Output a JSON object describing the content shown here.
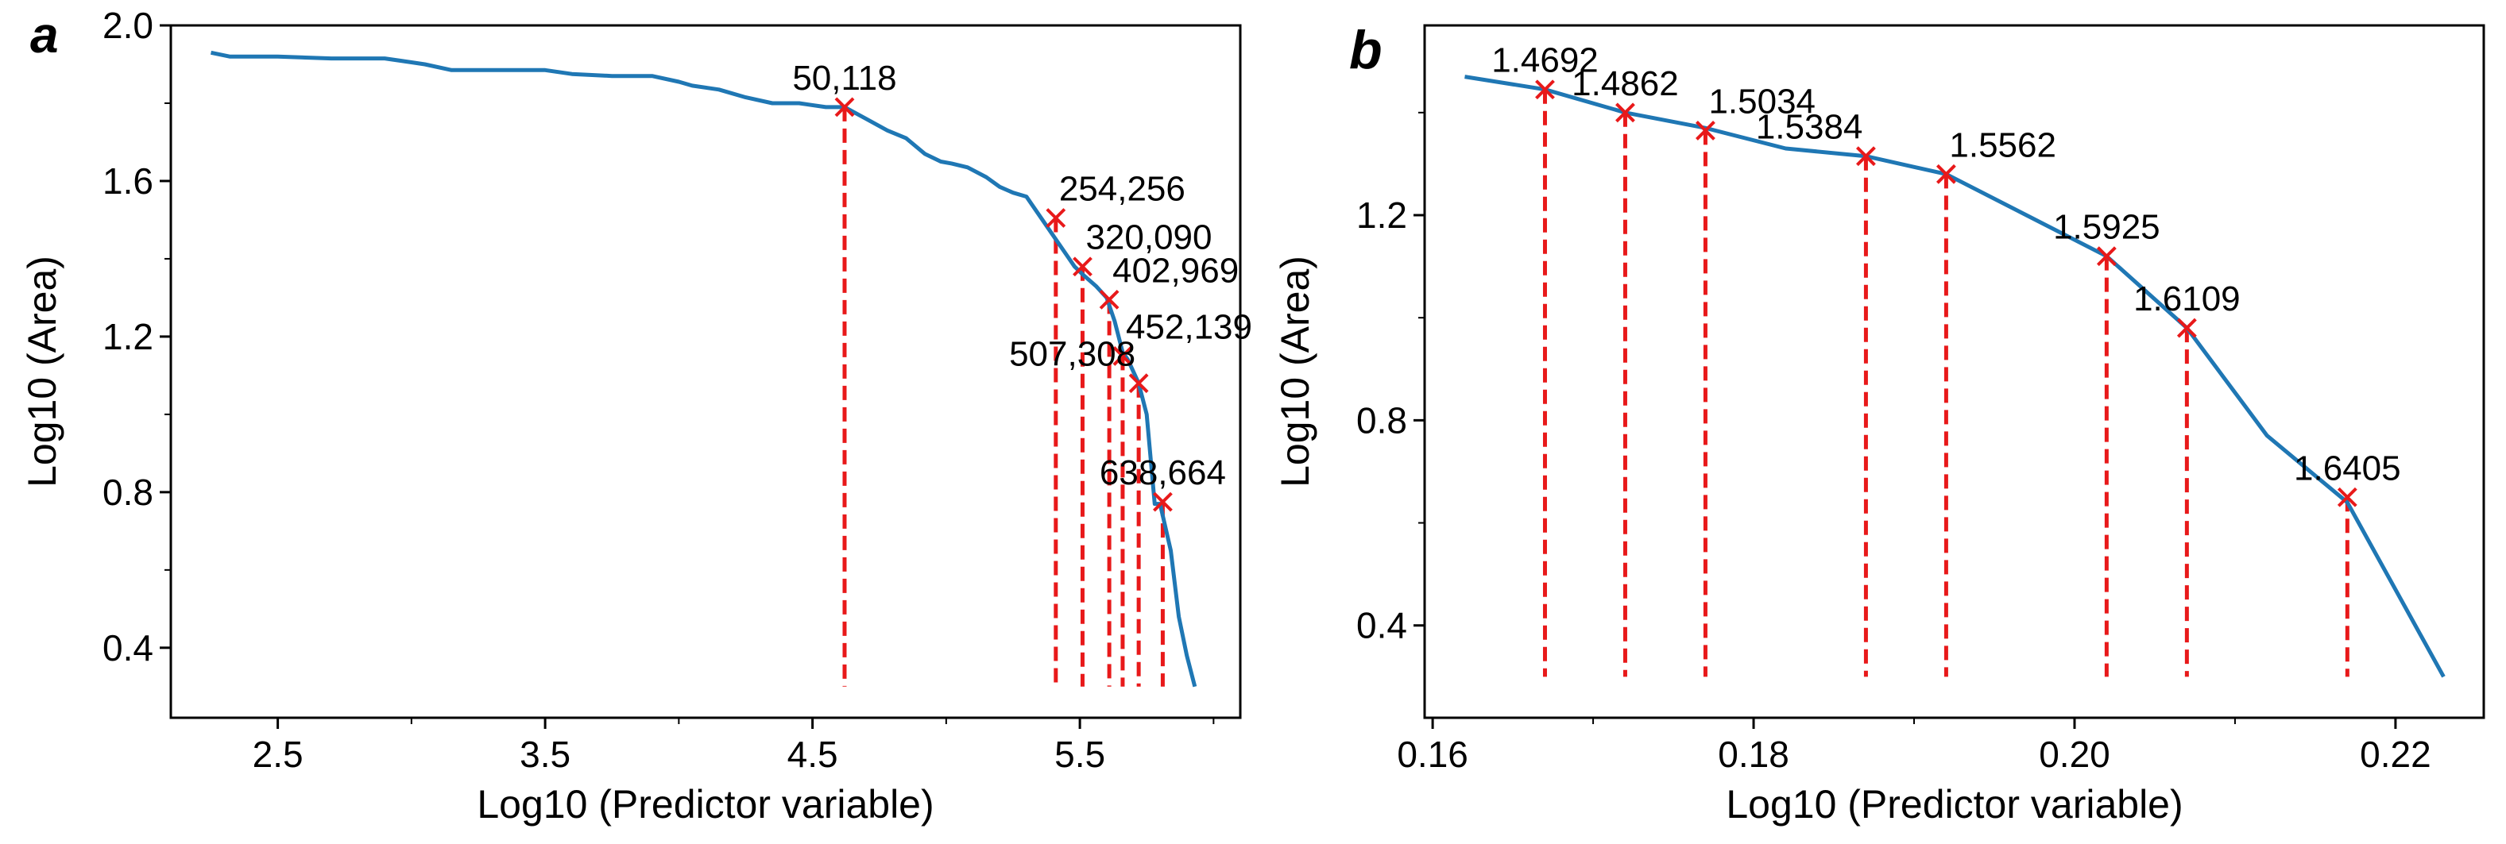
{
  "chart_data": [
    {
      "panel_label": "a",
      "type": "line",
      "xlabel": "Log10 (Predictor variable)",
      "ylabel": "Log10 (Area)",
      "xlim": [
        2.1,
        6.1
      ],
      "ylim": [
        0.22,
        2.0
      ],
      "xticks": [
        2.5,
        3.5,
        4.5,
        5.5
      ],
      "xtick_labels": [
        "2.5",
        "3.5",
        "4.5",
        "5.5"
      ],
      "xminor": [
        2.0,
        3.0,
        4.0,
        5.0,
        6.0
      ],
      "yticks": [
        0.4,
        0.8,
        1.2,
        1.6,
        2.0
      ],
      "ytick_labels": [
        "0.4",
        "0.8",
        "1.2",
        "1.6",
        "2.0"
      ],
      "yminor": [
        0.6,
        1.0,
        1.4,
        1.8
      ],
      "line_color": "#1f77b4",
      "marker_color": "#e8191a",
      "series": [
        {
          "name": "curve",
          "x": [
            2.25,
            2.32,
            2.5,
            2.7,
            2.9,
            3.0,
            3.05,
            3.15,
            3.3,
            3.5,
            3.6,
            3.75,
            3.9,
            4.0,
            4.05,
            4.15,
            4.25,
            4.35,
            4.45,
            4.55,
            4.62,
            4.7,
            4.78,
            4.85,
            4.92,
            4.98,
            5.02,
            5.08,
            5.15,
            5.2,
            5.25,
            5.3,
            5.36,
            5.41,
            5.45,
            5.48,
            5.51,
            5.56,
            5.6,
            5.63,
            5.66,
            5.68,
            5.72,
            5.75,
            5.78,
            5.8,
            5.84,
            5.87,
            5.9,
            5.93
          ],
          "y": [
            1.93,
            1.92,
            1.92,
            1.915,
            1.915,
            1.905,
            1.9,
            1.885,
            1.885,
            1.885,
            1.875,
            1.87,
            1.87,
            1.855,
            1.845,
            1.835,
            1.815,
            1.8,
            1.8,
            1.79,
            1.79,
            1.76,
            1.73,
            1.71,
            1.67,
            1.65,
            1.645,
            1.635,
            1.61,
            1.585,
            1.57,
            1.56,
            1.5,
            1.45,
            1.41,
            1.38,
            1.36,
            1.33,
            1.3,
            1.24,
            1.16,
            1.14,
            1.08,
            1.0,
            0.77,
            0.77,
            0.65,
            0.48,
            0.38,
            0.3
          ]
        }
      ],
      "markers": [
        {
          "x": 4.62,
          "y": 1.79,
          "label": "50,118",
          "anchor": "middle"
        },
        {
          "x": 5.41,
          "y": 1.505,
          "label": "254,256",
          "anchor": "start"
        },
        {
          "x": 5.51,
          "y": 1.38,
          "label": "320,090",
          "anchor": "start"
        },
        {
          "x": 5.61,
          "y": 1.295,
          "label": "402,969",
          "anchor": "start"
        },
        {
          "x": 5.66,
          "y": 1.15,
          "label": "452,139",
          "anchor": "start"
        },
        {
          "x": 5.72,
          "y": 1.08,
          "label": "507,308",
          "anchor": "end"
        },
        {
          "x": 5.81,
          "y": 0.775,
          "label": "638,664",
          "anchor": "middle"
        }
      ],
      "drop_line_bottom": 0.3
    },
    {
      "panel_label": "b",
      "type": "line",
      "xlabel": "Log10 (Predictor variable)",
      "ylabel": "Log10 (Area)",
      "xlim": [
        0.1595,
        0.2255
      ],
      "ylim": [
        0.22,
        1.57
      ],
      "xticks": [
        0.16,
        0.18,
        0.2,
        0.22
      ],
      "xtick_labels": [
        "0.16",
        "0.18",
        "0.20",
        "0.22"
      ],
      "xminor": [
        0.17,
        0.19,
        0.21
      ],
      "yticks": [
        0.4,
        0.8,
        1.2
      ],
      "ytick_labels": [
        "0.4",
        "0.8",
        "1.2"
      ],
      "yminor": [
        0.6,
        1.0,
        1.4
      ],
      "line_color": "#1f77b4",
      "marker_color": "#e8191a",
      "series": [
        {
          "name": "curve",
          "x": [
            0.162,
            0.167,
            0.172,
            0.177,
            0.182,
            0.187,
            0.192,
            0.197,
            0.202,
            0.207,
            0.212,
            0.217,
            0.223
          ],
          "y": [
            1.47,
            1.445,
            1.4,
            1.37,
            1.33,
            1.315,
            1.28,
            1.2,
            1.12,
            0.98,
            0.77,
            0.64,
            0.3
          ]
        }
      ],
      "markers": [
        {
          "x": 0.167,
          "y": 1.445,
          "label": "1.4692",
          "anchor": "middle"
        },
        {
          "x": 0.172,
          "y": 1.4,
          "label": "1.4862",
          "anchor": "middle"
        },
        {
          "x": 0.177,
          "y": 1.365,
          "label": "1.5034",
          "anchor": "start"
        },
        {
          "x": 0.187,
          "y": 1.315,
          "label": "1.5384",
          "anchor": "end"
        },
        {
          "x": 0.192,
          "y": 1.28,
          "label": "1.5562",
          "anchor": "start"
        },
        {
          "x": 0.202,
          "y": 1.12,
          "label": "1.5925",
          "anchor": "middle"
        },
        {
          "x": 0.207,
          "y": 0.98,
          "label": "1.6109",
          "anchor": "middle"
        },
        {
          "x": 0.217,
          "y": 0.65,
          "label": "1.6405",
          "anchor": "middle"
        }
      ],
      "drop_line_bottom": 0.3
    }
  ]
}
